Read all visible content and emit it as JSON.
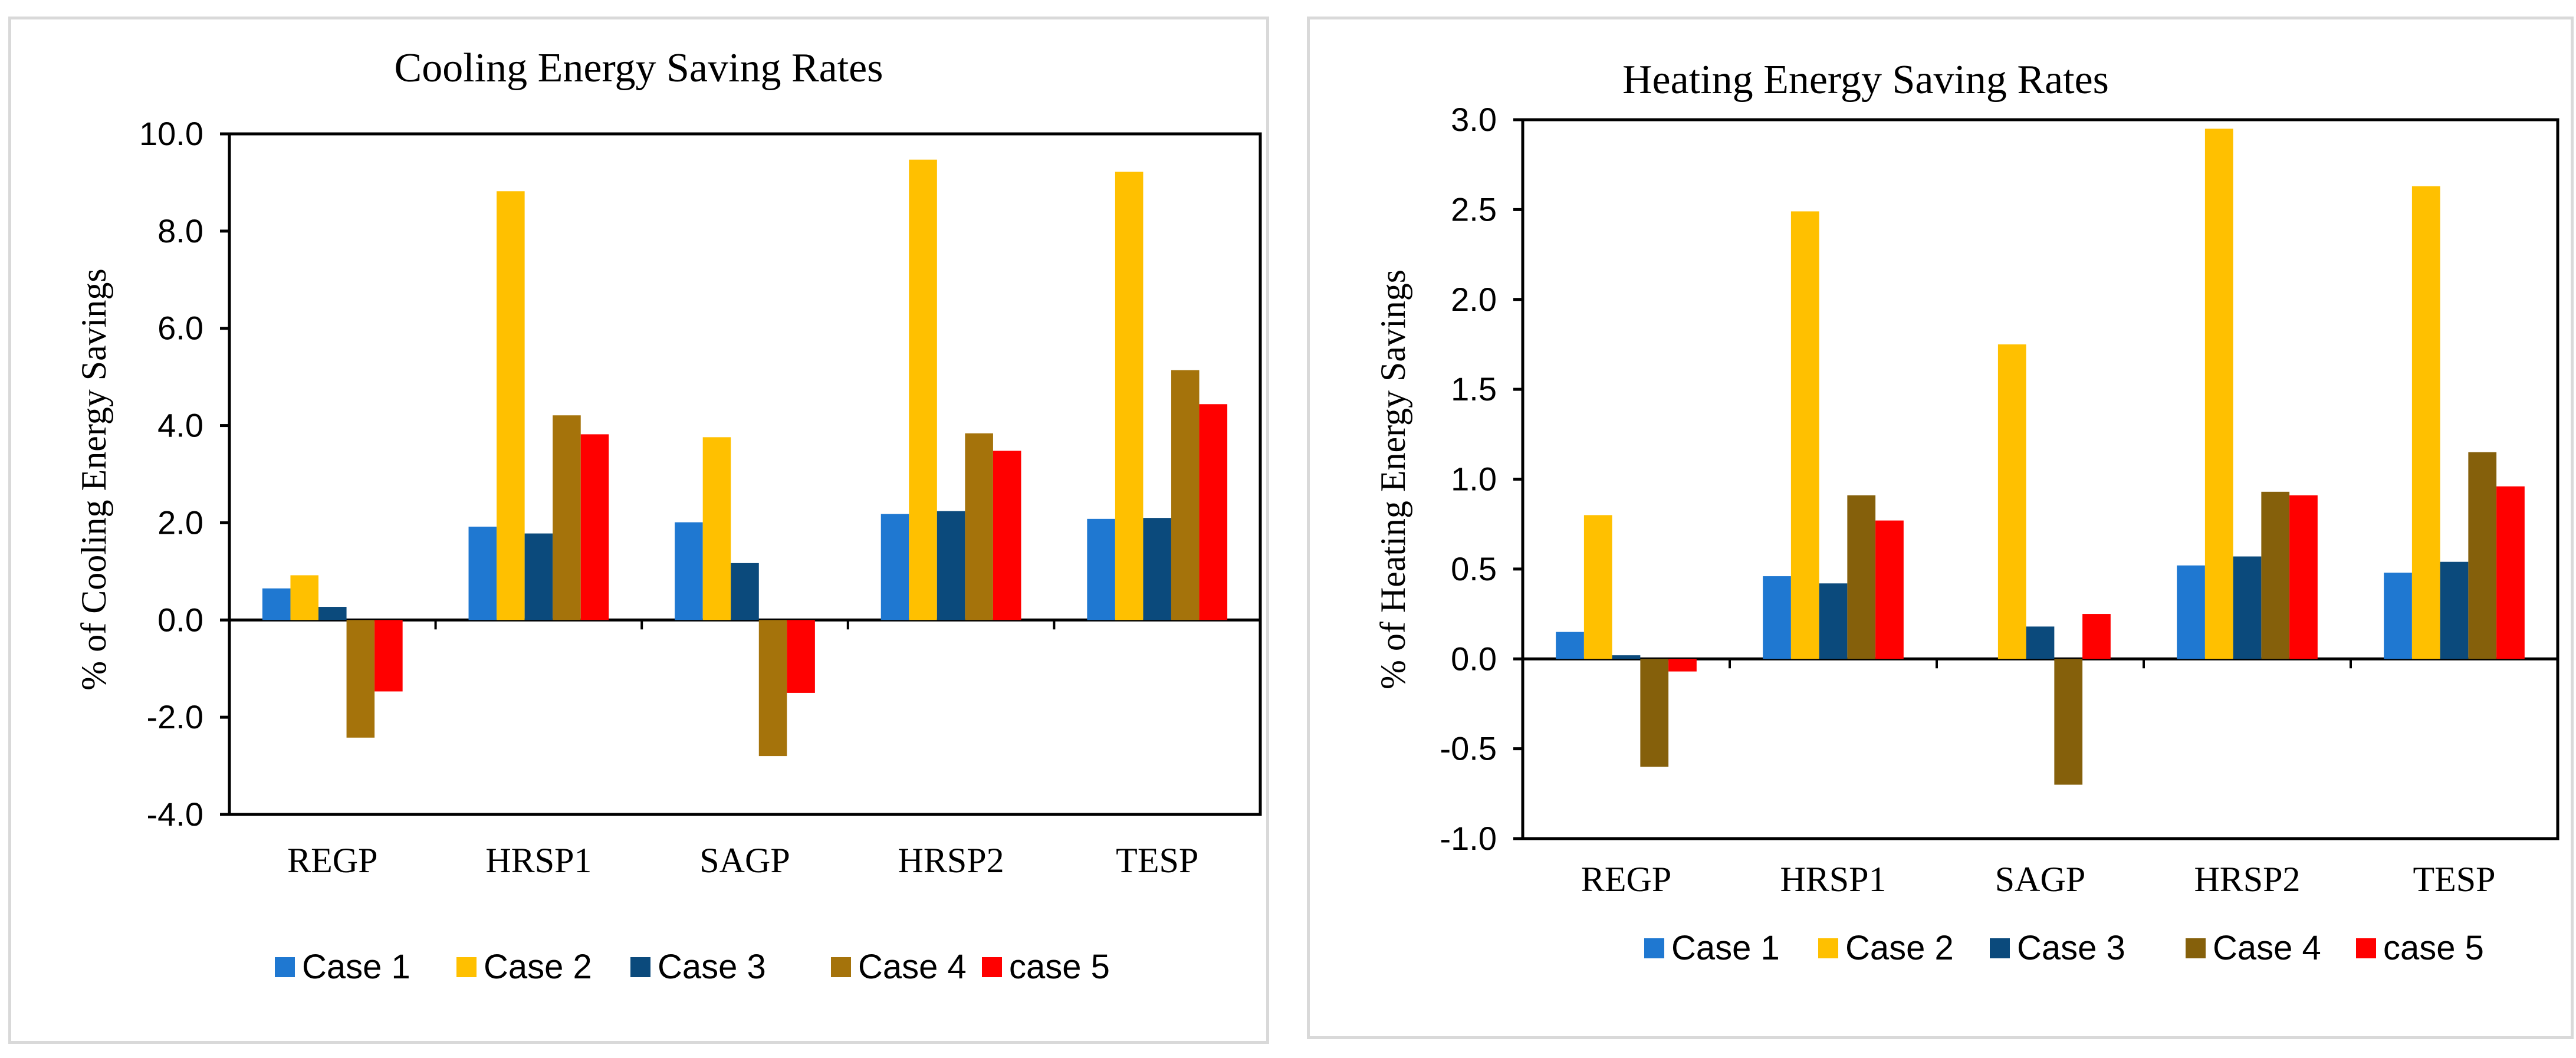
{
  "chart_data": [
    {
      "type": "bar",
      "title": "Cooling Energy Saving Rates",
      "xlabel": "",
      "ylabel": "% of Cooling Energy Savings",
      "ylim": [
        -4.0,
        10.0
      ],
      "yticks": [
        "-4.0",
        "-2.0",
        "0.0",
        "2.0",
        "4.0",
        "6.0",
        "8.0",
        "10.0"
      ],
      "ytick_values": [
        -4,
        -2,
        0,
        2,
        4,
        6,
        8,
        10
      ],
      "categories": [
        "REGP",
        "HRSP1",
        "SAGP",
        "HRSP2",
        "TESP"
      ],
      "legend_position": "bottom",
      "series": [
        {
          "name": "Case 1",
          "color": "#1f78d1",
          "values": [
            0.65,
            1.92,
            2.01,
            2.18,
            2.08
          ]
        },
        {
          "name": "Case 2",
          "color": "#ffc000",
          "values": [
            0.92,
            8.82,
            3.76,
            9.47,
            9.22
          ]
        },
        {
          "name": "Case 3",
          "color": "#0b4a7c",
          "values": [
            0.27,
            1.78,
            1.17,
            2.24,
            2.1
          ]
        },
        {
          "name": "Case 4",
          "color": "#a5730b",
          "values": [
            -2.42,
            4.21,
            -2.8,
            3.84,
            5.14
          ]
        },
        {
          "name": "case 5",
          "color": "#ff0000",
          "values": [
            -1.47,
            3.82,
            -1.5,
            3.48,
            4.44
          ]
        }
      ]
    },
    {
      "type": "bar",
      "title": "Heating Energy Saving Rates",
      "xlabel": "",
      "ylabel": "% of Heating Energy Savings",
      "ylim": [
        -1.0,
        3.0
      ],
      "yticks": [
        "-1.0",
        "-0.5",
        "0.0",
        "0.5",
        "1.0",
        "1.5",
        "2.0",
        "2.5",
        "3.0"
      ],
      "ytick_values": [
        -1.0,
        -0.5,
        0,
        0.5,
        1.0,
        1.5,
        2.0,
        2.5,
        3.0
      ],
      "categories": [
        "REGP",
        "HRSP1",
        "SAGP",
        "HRSP2",
        "TESP"
      ],
      "legend_position": "bottom",
      "series": [
        {
          "name": "Case 1",
          "color": "#1f78d1",
          "values": [
            0.15,
            0.46,
            0.0,
            0.52,
            0.48
          ]
        },
        {
          "name": "Case 2",
          "color": "#ffc000",
          "values": [
            0.8,
            2.49,
            1.75,
            2.95,
            2.63
          ]
        },
        {
          "name": "Case 3",
          "color": "#0b4a7c",
          "values": [
            0.02,
            0.42,
            0.18,
            0.57,
            0.54
          ]
        },
        {
          "name": "Case 4",
          "color": "#85600b",
          "values": [
            -0.6,
            0.91,
            -0.7,
            0.93,
            1.15
          ]
        },
        {
          "name": "case 5",
          "color": "#ff0000",
          "values": [
            -0.07,
            0.77,
            0.25,
            0.91,
            0.96
          ]
        }
      ]
    }
  ]
}
